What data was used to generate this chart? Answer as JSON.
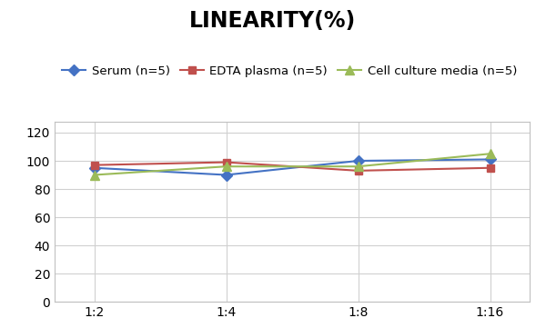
{
  "title": "LINEARITY(%)",
  "title_fontsize": 17,
  "title_fontweight": "bold",
  "x_labels": [
    "1:2",
    "1:4",
    "1:8",
    "1:16"
  ],
  "series": [
    {
      "label": "Serum (n=5)",
      "values": [
        95,
        90,
        100,
        101
      ],
      "color": "#4472C4",
      "marker": "D",
      "markersize": 6,
      "linewidth": 1.5
    },
    {
      "label": "EDTA plasma (n=5)",
      "values": [
        97,
        99,
        93,
        95
      ],
      "color": "#C0504D",
      "marker": "s",
      "markersize": 6,
      "linewidth": 1.5
    },
    {
      "label": "Cell culture media (n=5)",
      "values": [
        90,
        96,
        96,
        105
      ],
      "color": "#9BBB59",
      "marker": "^",
      "markersize": 7,
      "linewidth": 1.5
    }
  ],
  "ylim": [
    0,
    128
  ],
  "yticks": [
    0,
    20,
    40,
    60,
    80,
    100,
    120
  ],
  "background_color": "#ffffff",
  "grid_color": "#d0d0d0",
  "legend_fontsize": 9.5,
  "axis_fontsize": 10
}
